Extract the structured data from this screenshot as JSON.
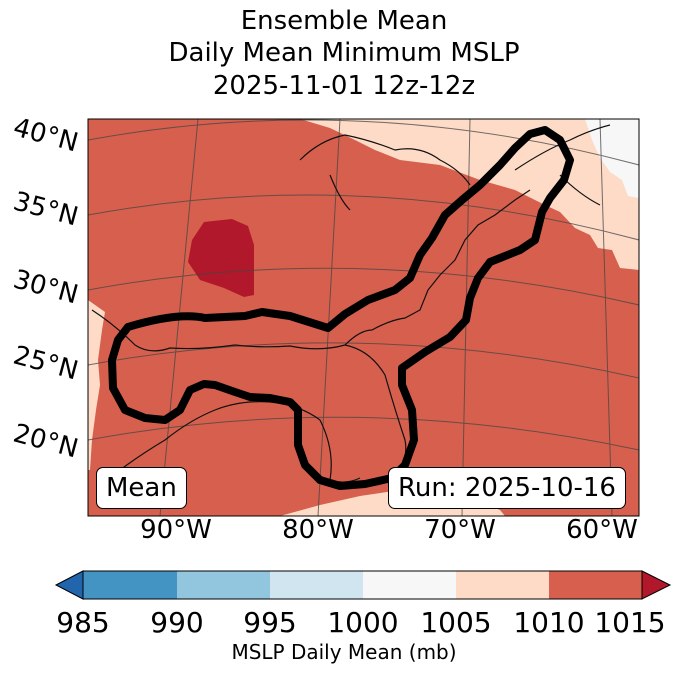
{
  "title": {
    "line1": "Ensemble Mean",
    "line2": "Daily Mean Minimum MSLP",
    "line3": "2025-11-01 12z-12z"
  },
  "map": {
    "lat_labels": [
      "40°N",
      "35°N",
      "30°N",
      "25°N",
      "20°N"
    ],
    "lon_labels": [
      "90°W",
      "80°W",
      "70°W",
      "60°W"
    ],
    "box_left": "Mean",
    "box_right": "Run: 2025-10-16",
    "dominant_band": "1010-1015",
    "colors": {
      "band_1010_1015": "#d6604d",
      "band_1005_1010": "#fddbc7",
      "band_1000_1005": "#f7f7f7",
      "band_above_1015": "#b2182b",
      "contour": "#000000"
    }
  },
  "colorbar": {
    "ticks": [
      "985",
      "990",
      "995",
      "1000",
      "1005",
      "1010",
      "1015"
    ],
    "label": "MSLP Daily Mean (mb)",
    "bins": [
      {
        "range": "<985",
        "color": "#2166ac"
      },
      {
        "range": "985-990",
        "color": "#4393c3"
      },
      {
        "range": "990-995",
        "color": "#92c5de"
      },
      {
        "range": "995-1000",
        "color": "#d1e5f0"
      },
      {
        "range": "1000-1005",
        "color": "#f7f7f7"
      },
      {
        "range": "1005-1010",
        "color": "#fddbc7"
      },
      {
        "range": "1010-1015",
        "color": "#d6604d"
      },
      {
        "range": ">1015",
        "color": "#b2182b"
      }
    ]
  }
}
